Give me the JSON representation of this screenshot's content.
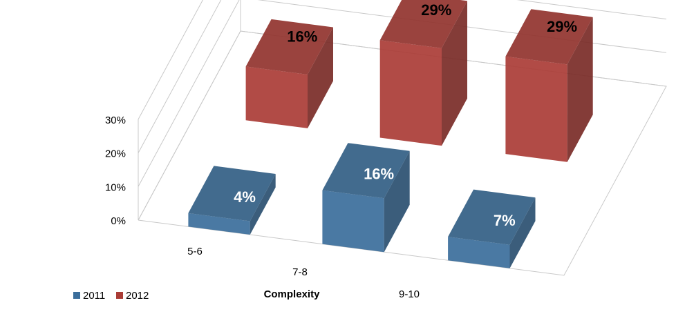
{
  "chart_data": {
    "type": "bar",
    "subtype": "3d-column",
    "categories": [
      "5-6",
      "7-8",
      "9-10"
    ],
    "series": [
      {
        "name": "2011",
        "values": [
          4,
          16,
          7
        ],
        "labels": [
          "4%",
          "16%",
          "7%"
        ],
        "color": "#3b6e9b"
      },
      {
        "name": "2012",
        "values": [
          16,
          29,
          29
        ],
        "labels": [
          "16%",
          "29%",
          "29%"
        ],
        "color": "#aa3c36"
      }
    ],
    "yticks": [
      "0%",
      "10%",
      "20%",
      "30%"
    ],
    "ytick_values": [
      0,
      10,
      20,
      30
    ],
    "ylim": [
      0,
      30
    ],
    "xlabel": "Complexity",
    "ylabel": "",
    "title": "",
    "grid": true,
    "legend": {
      "position": "bottom-left",
      "entries": [
        "2011",
        "2012"
      ]
    }
  }
}
